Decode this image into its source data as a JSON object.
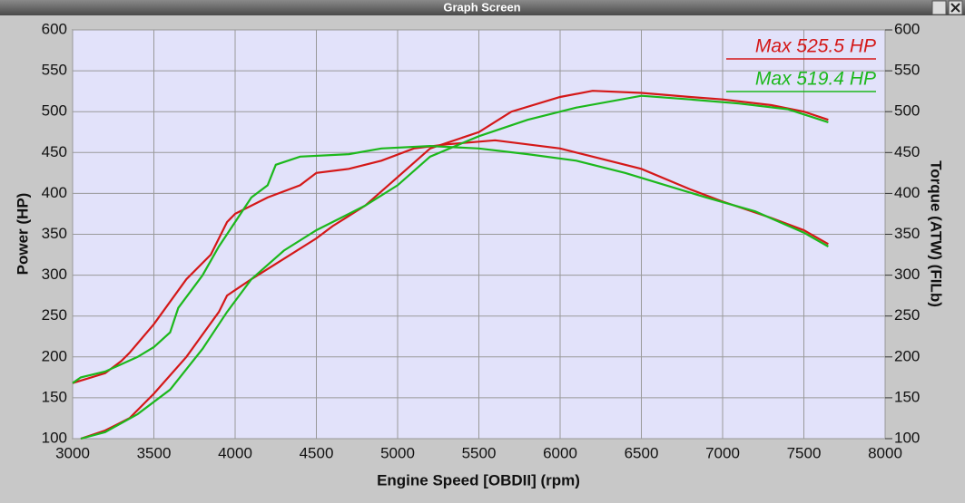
{
  "window": {
    "title": "Graph Screen"
  },
  "chart_data": {
    "type": "line",
    "xlabel": "Engine Speed [OBDII] (rpm)",
    "ylabel": "Power (HP)",
    "y2label": "Torque (ATW) (FILb)",
    "annotations": [
      "Max 525.5 HP",
      "Max 519.4 HP"
    ],
    "annotation_colors": [
      "#d41818",
      "#1cb81c"
    ],
    "xlim": [
      3000,
      8000
    ],
    "xticks": [
      3000,
      3500,
      4000,
      4500,
      5000,
      5500,
      6000,
      6500,
      7000,
      7500,
      8000
    ],
    "ylim": [
      100,
      600
    ],
    "yticks": [
      100,
      150,
      200,
      250,
      300,
      350,
      400,
      450,
      500,
      550,
      600
    ],
    "y2lim": [
      100,
      600
    ],
    "y2ticks": [
      100,
      150,
      200,
      250,
      300,
      350,
      400,
      450,
      500,
      550,
      600
    ],
    "grid": true,
    "series": [
      {
        "color": "#d41818",
        "x": [
          3050,
          3200,
          3350,
          3500,
          3700,
          3900,
          3950,
          4100,
          4300,
          4500,
          4600,
          4800,
          5000,
          5200,
          5500,
          5700,
          6000,
          6200,
          6500,
          6800,
          7000,
          7300,
          7500,
          7650
        ],
        "values": [
          100,
          110,
          125,
          155,
          200,
          255,
          275,
          295,
          320,
          345,
          360,
          385,
          420,
          455,
          475,
          500,
          518,
          525.5,
          523,
          518,
          515,
          508,
          500,
          490
        ]
      },
      {
        "color": "#d41818",
        "axis": "y2",
        "x": [
          3000,
          3200,
          3300,
          3350,
          3500,
          3700,
          3850,
          3950,
          4000,
          4200,
          4400,
          4500,
          4700,
          4900,
          5100,
          5300,
          5600,
          6000,
          6200,
          6500,
          6800,
          7000,
          7300,
          7500,
          7650
        ],
        "values": [
          168,
          180,
          195,
          205,
          240,
          295,
          325,
          365,
          375,
          395,
          410,
          425,
          430,
          440,
          455,
          460,
          465,
          455,
          445,
          430,
          405,
          390,
          370,
          355,
          338
        ]
      },
      {
        "color": "#1cb81c",
        "x": [
          3050,
          3200,
          3400,
          3600,
          3800,
          3950,
          4100,
          4300,
          4500,
          4800,
          5000,
          5200,
          5500,
          5800,
          6100,
          6500,
          6800,
          7100,
          7400,
          7650
        ],
        "values": [
          100,
          108,
          130,
          160,
          210,
          255,
          295,
          330,
          355,
          385,
          410,
          445,
          470,
          490,
          505,
          519.4,
          515,
          510,
          503,
          487
        ]
      },
      {
        "color": "#1cb81c",
        "axis": "y2",
        "x": [
          3000,
          3050,
          3200,
          3400,
          3500,
          3600,
          3650,
          3800,
          3900,
          4000,
          4100,
          4200,
          4250,
          4400,
          4700,
          4900,
          5200,
          5500,
          5800,
          6100,
          6400,
          6600,
          6900,
          7200,
          7500,
          7650
        ],
        "values": [
          168,
          175,
          182,
          200,
          212,
          230,
          260,
          300,
          335,
          365,
          395,
          410,
          435,
          445,
          448,
          455,
          458,
          455,
          448,
          440,
          425,
          413,
          395,
          378,
          352,
          335
        ]
      }
    ]
  }
}
